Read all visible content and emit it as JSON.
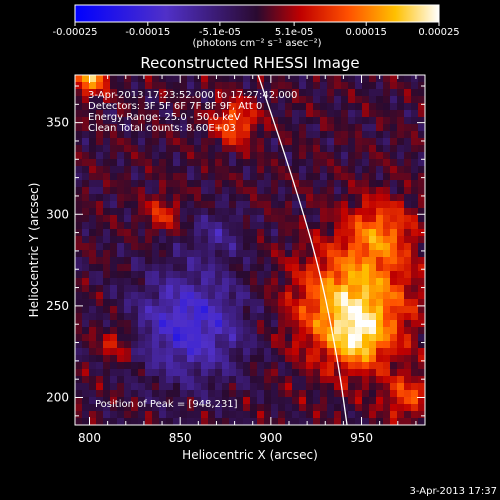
{
  "chart_data": {
    "type": "heatmap",
    "title": "Reconstructed RHESSI Image",
    "xlabel": "Heliocentric X (arcsec)",
    "ylabel": "Heliocentric Y (arcsec)",
    "xlim": [
      792,
      985
    ],
    "ylim": [
      185,
      376
    ],
    "xticks": [
      "800",
      "850",
      "900",
      "950"
    ],
    "yticks": [
      "200",
      "250",
      "300",
      "350"
    ],
    "colorbar": {
      "range": [
        -0.00025,
        0.00025
      ],
      "ticks": [
        "-0.00025",
        "-0.00015",
        "-5.1e-05",
        "5.1e-05",
        "0.00015",
        "0.00025"
      ],
      "unit_label": "(photons cm⁻² s⁻¹ asec⁻²)"
    },
    "annotations": [
      "3-Apr-2013 17:23:52.000 to 17:27:42.000",
      "Detectors: 3F 5F 6F 7F 8F 9F, Att 0",
      "Energy Range: 25.0 - 50.0 keV",
      "Clean     Total counts: 8.60E+03"
    ],
    "peak_label": "Position of Peak = [948,231]",
    "peak": [
      948,
      231
    ],
    "limb_curve": [
      [
        893,
        376
      ],
      [
        912,
        320
      ],
      [
        927,
        270
      ],
      [
        937,
        220
      ],
      [
        942,
        185
      ]
    ],
    "bright_sources": [
      {
        "x": 945,
        "y": 250,
        "r": 30,
        "amp": 1.0
      },
      {
        "x": 948,
        "y": 231,
        "r": 14,
        "amp": 0.5
      },
      {
        "x": 960,
        "y": 290,
        "r": 18,
        "amp": 0.6
      },
      {
        "x": 880,
        "y": 350,
        "r": 12,
        "amp": 0.6
      },
      {
        "x": 800,
        "y": 376,
        "r": 10,
        "amp": 0.9
      },
      {
        "x": 840,
        "y": 300,
        "r": 10,
        "amp": 0.4
      },
      {
        "x": 815,
        "y": 230,
        "r": 10,
        "amp": 0.4
      },
      {
        "x": 975,
        "y": 200,
        "r": 12,
        "amp": 0.5
      }
    ],
    "dark_regions": [
      {
        "x": 855,
        "y": 240,
        "r": 30,
        "amp": 0.7
      },
      {
        "x": 870,
        "y": 290,
        "r": 14,
        "amp": 0.3
      }
    ],
    "grid": false
  },
  "footer": {
    "date": "3-Apr-2013 17:37"
  },
  "colors": {
    "background": "#000000",
    "text": "#ffffff",
    "limb": "#ffffff"
  }
}
